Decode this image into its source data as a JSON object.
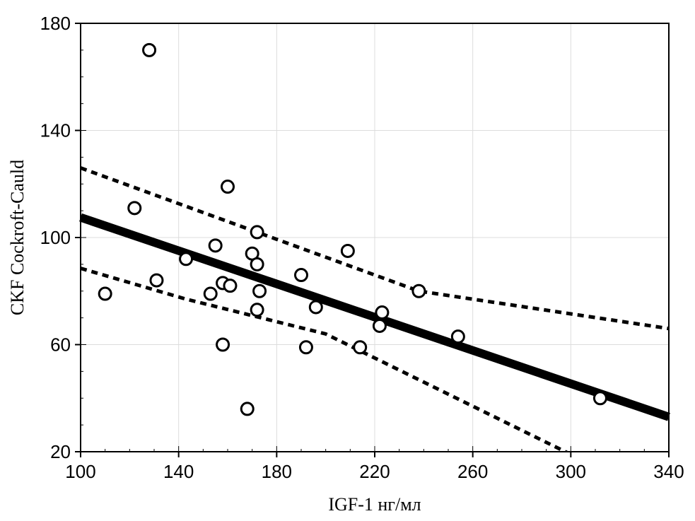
{
  "chart_data": {
    "type": "scatter",
    "title": "",
    "xlabel": "IGF-1 нг/мл",
    "ylabel": "CKF Cockroft-Cauld",
    "xlim": [
      100,
      340
    ],
    "ylim": [
      20,
      180
    ],
    "x_ticks": [
      100,
      140,
      180,
      220,
      260,
      300,
      340
    ],
    "y_ticks": [
      20,
      60,
      100,
      140,
      180
    ],
    "grid": true,
    "points": [
      {
        "x": 110,
        "y": 79
      },
      {
        "x": 122,
        "y": 111
      },
      {
        "x": 128,
        "y": 170
      },
      {
        "x": 131,
        "y": 84
      },
      {
        "x": 143,
        "y": 92
      },
      {
        "x": 153,
        "y": 79
      },
      {
        "x": 155,
        "y": 97
      },
      {
        "x": 158,
        "y": 83
      },
      {
        "x": 158,
        "y": 60
      },
      {
        "x": 160,
        "y": 119
      },
      {
        "x": 161,
        "y": 82
      },
      {
        "x": 168,
        "y": 36
      },
      {
        "x": 170,
        "y": 94
      },
      {
        "x": 172,
        "y": 102
      },
      {
        "x": 172,
        "y": 90
      },
      {
        "x": 172,
        "y": 73
      },
      {
        "x": 173,
        "y": 80
      },
      {
        "x": 190,
        "y": 86
      },
      {
        "x": 192,
        "y": 59
      },
      {
        "x": 196,
        "y": 74
      },
      {
        "x": 209,
        "y": 95
      },
      {
        "x": 214,
        "y": 59
      },
      {
        "x": 222,
        "y": 67
      },
      {
        "x": 223,
        "y": 72
      },
      {
        "x": 238,
        "y": 80
      },
      {
        "x": 254,
        "y": 63
      },
      {
        "x": 312,
        "y": 40
      }
    ],
    "regression": {
      "x": [
        100,
        340
      ],
      "y": [
        107.5,
        33
      ]
    },
    "confidence_upper": {
      "x": [
        100,
        238,
        340
      ],
      "y": [
        126,
        80,
        66
      ]
    },
    "confidence_lower": {
      "x": [
        100,
        143,
        200,
        300
      ],
      "y": [
        88.5,
        77,
        64,
        19
      ]
    }
  }
}
